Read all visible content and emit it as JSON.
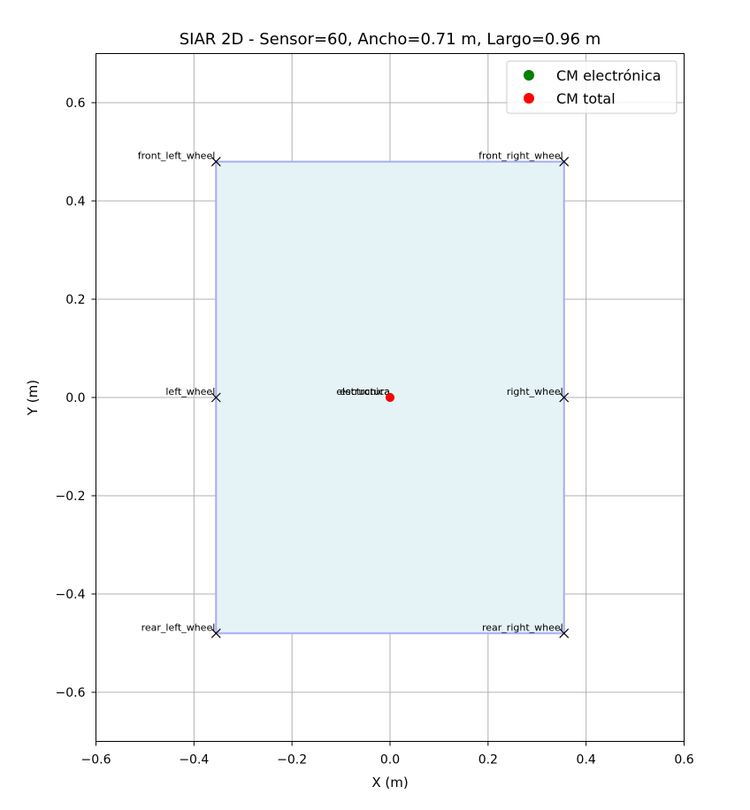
{
  "chart_data": {
    "type": "scatter",
    "title": "SIAR 2D - Sensor=60, Ancho=0.71 m, Largo=0.96 m",
    "xlabel": "X (m)",
    "ylabel": "Y (m)",
    "xlim": [
      -0.6,
      0.6
    ],
    "ylim": [
      -0.7,
      0.7
    ],
    "xticks": [
      -0.6,
      -0.4,
      -0.2,
      0.0,
      0.2,
      0.4,
      0.6
    ],
    "yticks": [
      -0.6,
      -0.4,
      -0.2,
      0.0,
      0.2,
      0.4,
      0.6
    ],
    "xtick_labels": [
      "−0.6",
      "−0.4",
      "−0.2",
      "0.0",
      "0.2",
      "0.4",
      "0.6"
    ],
    "ytick_labels": [
      "−0.6",
      "−0.4",
      "−0.2",
      "0.0",
      "0.2",
      "0.4",
      "0.6"
    ],
    "grid": true,
    "legend_placement": "top-right",
    "body_rectangle": {
      "corners": [
        [
          -0.355,
          -0.48
        ],
        [
          0.355,
          -0.48
        ],
        [
          0.355,
          0.48
        ],
        [
          -0.355,
          0.48
        ]
      ],
      "fill_color": "#e5f3f6",
      "edge_color": "#aaaaf5"
    },
    "wheels": [
      {
        "name": "front_left_wheel",
        "x": -0.355,
        "y": 0.48
      },
      {
        "name": "front_right_wheel",
        "x": 0.355,
        "y": 0.48
      },
      {
        "name": "left_wheel",
        "x": -0.355,
        "y": 0.0
      },
      {
        "name": "right_wheel",
        "x": 0.355,
        "y": 0.0
      },
      {
        "name": "rear_left_wheel",
        "x": -0.355,
        "y": -0.48
      },
      {
        "name": "rear_right_wheel",
        "x": 0.355,
        "y": -0.48
      }
    ],
    "component_labels": [
      {
        "name": "electronica",
        "x": 0.0,
        "y": 0.0
      },
      {
        "name": "estructura",
        "x": 0.0,
        "y": 0.0
      }
    ],
    "series": [
      {
        "name": "CM electrónica",
        "color": "#008000",
        "x": [
          0.0
        ],
        "y": [
          0.0
        ]
      },
      {
        "name": "CM total",
        "color": "#ff0000",
        "x": [
          0.0
        ],
        "y": [
          0.0
        ]
      }
    ]
  }
}
